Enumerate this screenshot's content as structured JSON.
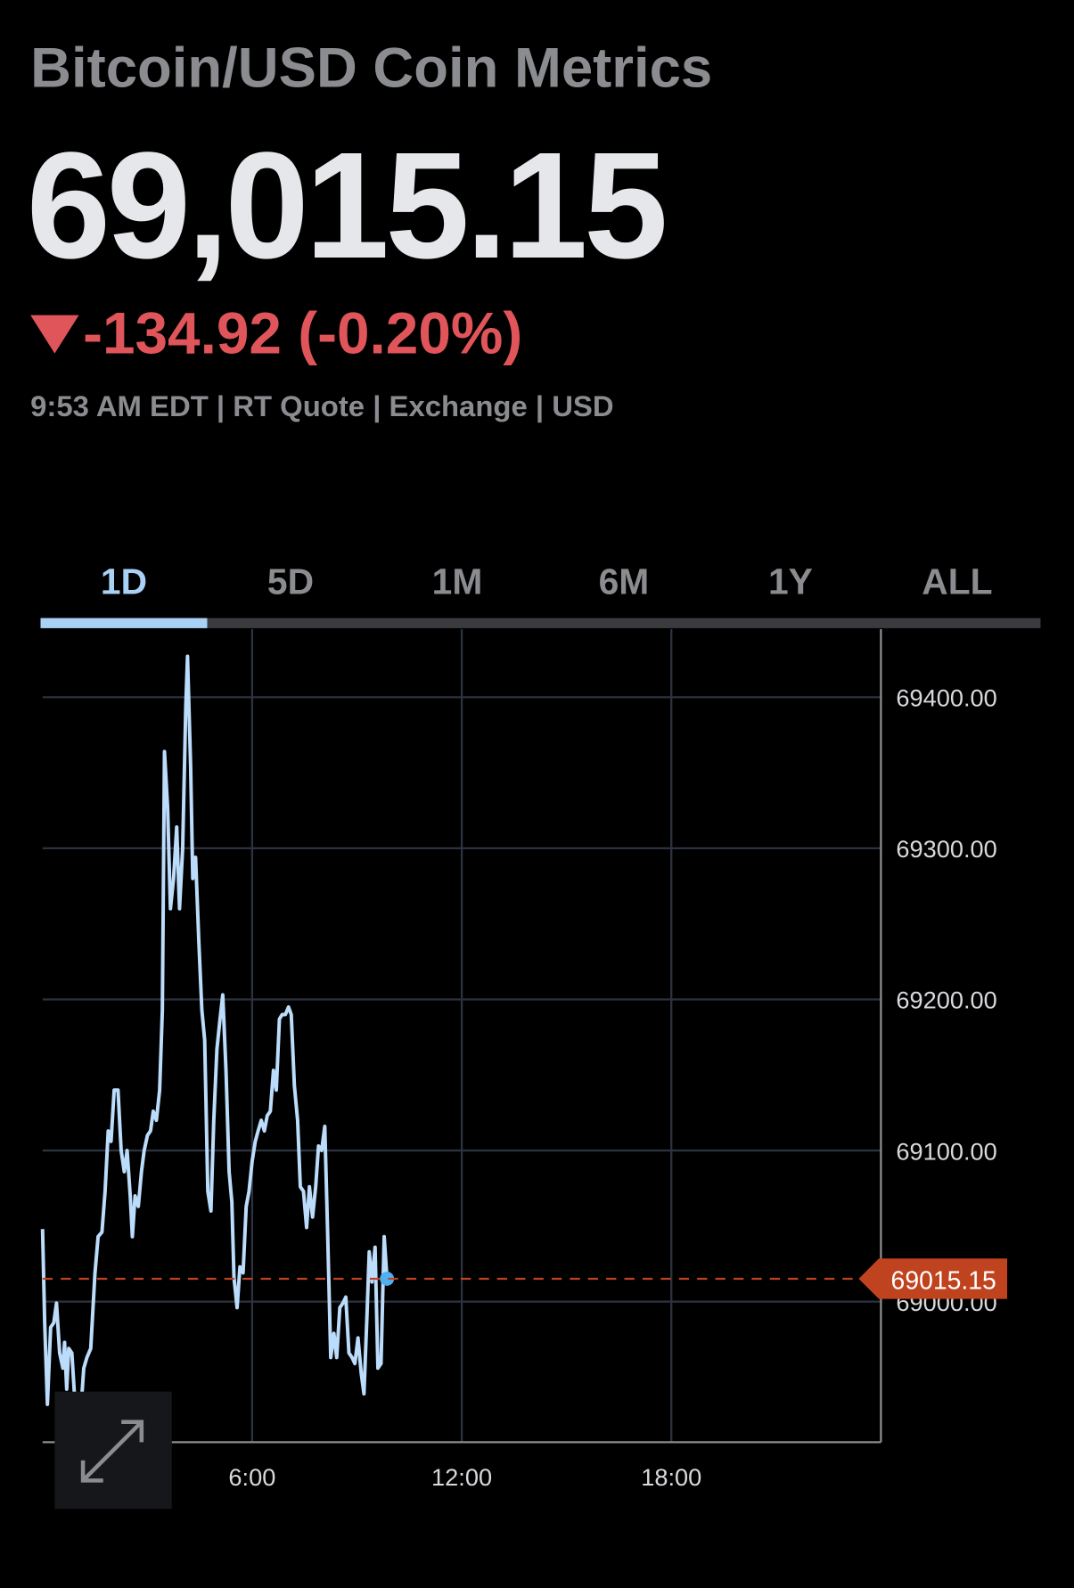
{
  "header": {
    "title": "Bitcoin/USD Coin Metrics",
    "price": "69,015.15",
    "change": "-134.92 (-0.20%)",
    "meta": "9:53 AM EDT | RT Quote | Exchange | USD"
  },
  "tabs": {
    "items": [
      "1D",
      "5D",
      "1M",
      "6M",
      "1Y",
      "ALL"
    ],
    "selected": 0
  },
  "chart_data": {
    "type": "line",
    "x": [
      0,
      0.06,
      0.14,
      0.23,
      0.32,
      0.4,
      0.49,
      0.58,
      0.63,
      0.69,
      0.75,
      0.84,
      0.92,
      1.01,
      1.1,
      1.18,
      1.27,
      1.38,
      1.5,
      1.59,
      1.7,
      1.79,
      1.88,
      1.96,
      2.05,
      2.16,
      2.25,
      2.34,
      2.42,
      2.51,
      2.57,
      2.65,
      2.74,
      2.83,
      2.91,
      3.0,
      3.09,
      3.17,
      3.26,
      3.35,
      3.43,
      3.49,
      3.58,
      3.66,
      3.75,
      3.84,
      3.92,
      4.01,
      4.1,
      4.15,
      4.24,
      4.3,
      4.38,
      4.47,
      4.56,
      4.64,
      4.73,
      4.82,
      4.9,
      4.99,
      5.08,
      5.16,
      5.25,
      5.34,
      5.42,
      5.48,
      5.57,
      5.65,
      5.74,
      5.83,
      5.91,
      6.0,
      6.09,
      6.17,
      6.26,
      6.35,
      6.43,
      6.52,
      6.61,
      6.69,
      6.78,
      6.86,
      6.95,
      7.04,
      7.12,
      7.21,
      7.3,
      7.38,
      7.47,
      7.56,
      7.64,
      7.73,
      7.82,
      7.9,
      7.99,
      8.08,
      8.16,
      8.25,
      8.34,
      8.42,
      8.51,
      8.6,
      8.68,
      8.77,
      8.86,
      8.94,
      9.03,
      9.12,
      9.2,
      9.29,
      9.35,
      9.43,
      9.52,
      9.6,
      9.69,
      9.78,
      9.86
    ],
    "series": [
      {
        "color": "#bcdcfb",
        "values": [
          69048,
          68986,
          68932,
          68983,
          68986,
          68999,
          68966,
          68956,
          68973,
          68942,
          68969,
          68966,
          68936,
          68939,
          68929,
          68956,
          68963,
          68969,
          69019,
          69043,
          69046,
          69073,
          69113,
          69106,
          69140,
          69140,
          69100,
          69086,
          69100,
          69070,
          69043,
          69070,
          69063,
          69086,
          69100,
          69110,
          69113,
          69126,
          69120,
          69140,
          69193,
          69364,
          69327,
          69260,
          69280,
          69314,
          69260,
          69300,
          69394,
          69427,
          69354,
          69280,
          69294,
          69240,
          69193,
          69173,
          69073,
          69060,
          69120,
          69167,
          69187,
          69203,
          69153,
          69086,
          69066,
          69016,
          68996,
          69023,
          69019,
          69063,
          69073,
          69093,
          69106,
          69113,
          69120,
          69113,
          69123,
          69126,
          69153,
          69140,
          69187,
          69190,
          69190,
          69195,
          69190,
          69143,
          69120,
          69076,
          69073,
          69049,
          69076,
          69056,
          69076,
          69103,
          69100,
          69116,
          69046,
          68963,
          68979,
          68963,
          68996,
          68999,
          69003,
          68966,
          68963,
          68959,
          68976,
          68953,
          68939,
          68993,
          69033,
          69013,
          69036,
          68956,
          68959,
          69043,
          69015.15
        ]
      }
    ],
    "xlim": [
      0,
      24
    ],
    "xticks": [
      {
        "value": 6,
        "label": "6:00"
      },
      {
        "value": 12,
        "label": "12:00"
      },
      {
        "value": 18,
        "label": "18:00"
      }
    ],
    "ylim": [
      68907,
      69445
    ],
    "yticks": [
      {
        "value": 69000,
        "label": "69000.00"
      },
      {
        "value": 69100,
        "label": "69100.00"
      },
      {
        "value": 69200,
        "label": "69200.00"
      },
      {
        "value": 69300,
        "label": "69300.00"
      },
      {
        "value": 69400,
        "label": "69400.00"
      }
    ],
    "grid": true,
    "last_price": 69015.15,
    "last_price_color": "#c0431f"
  }
}
